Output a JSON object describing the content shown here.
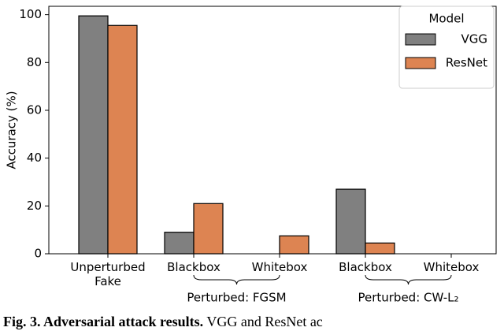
{
  "chart_data": {
    "type": "bar",
    "categories": [
      "Unperturbed\nFake",
      "Blackbox",
      "Whitebox",
      "Blackbox",
      "Whitebox"
    ],
    "groups": [
      {
        "label": "Perturbed: FGSM"
      },
      {
        "label": "Perturbed: CW-L₂"
      }
    ],
    "ylabel": "Accuracy (%)",
    "series": [
      {
        "name": "VGG",
        "color": "#808080",
        "values": [
          99.5,
          9,
          0,
          27,
          0
        ]
      },
      {
        "name": "ResNet",
        "color": "#dd8452",
        "values": [
          95.5,
          21,
          7.5,
          4.5,
          0
        ]
      }
    ],
    "legend_title": "Model",
    "legend_position": "upper right",
    "ylim": [
      0,
      103.5
    ],
    "yticks": [
      0,
      20,
      40,
      60,
      80,
      100
    ]
  },
  "caption": {
    "label": "Fig. 3. Adversarial attack results.",
    "text": "VGG and ResNet ac"
  }
}
